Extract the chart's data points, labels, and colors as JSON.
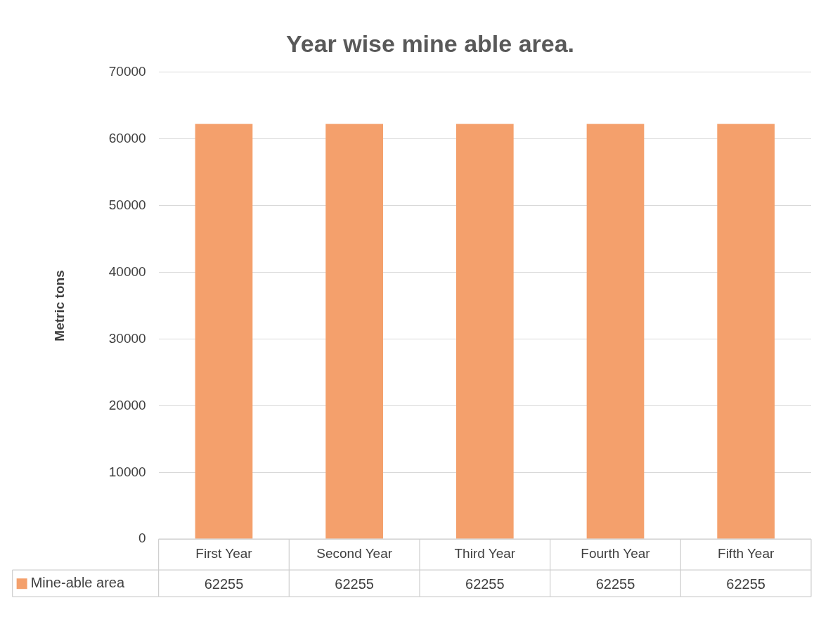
{
  "chart_data": {
    "type": "bar",
    "title": "Year wise mine able area.",
    "ylabel": "Metric tons",
    "categories": [
      "First Year",
      "Second Year",
      "Third Year",
      "Fourth Year",
      "Fifth Year"
    ],
    "series": [
      {
        "name": "Mine-able area",
        "color": "#f4a06c",
        "values": [
          62255,
          62255,
          62255,
          62255,
          62255
        ]
      }
    ],
    "ylim": [
      0,
      70000
    ],
    "yticks": [
      0,
      10000,
      20000,
      30000,
      40000,
      50000,
      60000,
      70000
    ],
    "grid": "y",
    "legend": "bottom",
    "data_labels": true
  }
}
